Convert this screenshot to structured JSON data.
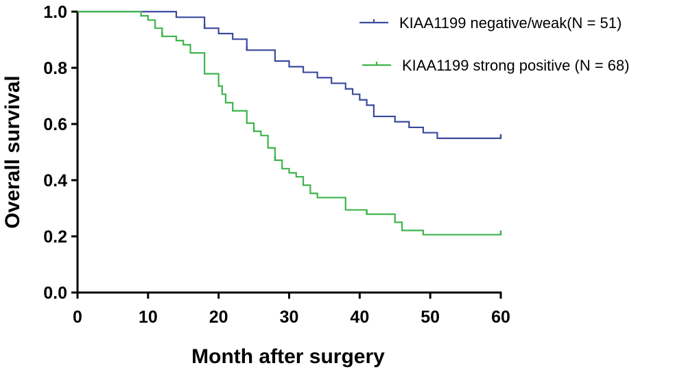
{
  "chart_data": {
    "type": "line",
    "title": "",
    "xlabel": "Month after surgery",
    "ylabel": "Overall survival",
    "xlim": [
      0,
      60
    ],
    "ylim": [
      0,
      1.0
    ],
    "xticks": [
      0,
      10,
      20,
      30,
      40,
      50,
      60
    ],
    "yticks": [
      "0.0",
      "0.2",
      "0.4",
      "0.6",
      "0.8",
      "1.0"
    ],
    "legend_position": "top-right",
    "series": [
      {
        "name": "KIAA1199 negative/weak(N = 51)",
        "color": "#3b4a9e",
        "step": true,
        "x": [
          0,
          14,
          18,
          20,
          22,
          24,
          28,
          30,
          32,
          34,
          36,
          38,
          39,
          40,
          41,
          42,
          45,
          47,
          49,
          51,
          60
        ],
        "y": [
          1.0,
          0.98,
          0.941,
          0.922,
          0.902,
          0.863,
          0.824,
          0.804,
          0.784,
          0.765,
          0.745,
          0.725,
          0.706,
          0.686,
          0.667,
          0.627,
          0.608,
          0.588,
          0.569,
          0.549,
          0.549
        ],
        "censored_x": [
          18,
          24,
          60
        ],
        "censored_y": [
          0.941,
          0.863,
          0.549
        ]
      },
      {
        "name": "KIAA1199 strong positive (N = 68)",
        "color": "#3cb44b",
        "step": true,
        "x": [
          0,
          9,
          10,
          11,
          12,
          14,
          15,
          16,
          18,
          20,
          20.5,
          21,
          22,
          24,
          25,
          26,
          27,
          28,
          29,
          30,
          31,
          32,
          33,
          34,
          38,
          41,
          45,
          46,
          49,
          60
        ],
        "y": [
          1.0,
          0.985,
          0.97,
          0.941,
          0.912,
          0.897,
          0.882,
          0.853,
          0.779,
          0.735,
          0.706,
          0.676,
          0.647,
          0.603,
          0.574,
          0.559,
          0.515,
          0.471,
          0.441,
          0.426,
          0.412,
          0.382,
          0.353,
          0.338,
          0.294,
          0.279,
          0.25,
          0.221,
          0.206,
          0.206
        ],
        "censored_x": [
          12,
          25,
          28,
          41,
          60
        ],
        "censored_y": [
          0.912,
          0.574,
          0.471,
          0.279,
          0.206
        ]
      }
    ]
  }
}
